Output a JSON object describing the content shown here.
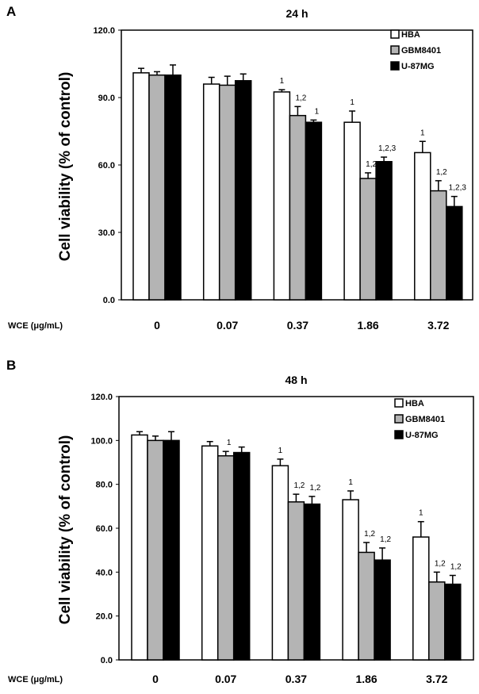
{
  "colors": {
    "HBA": "#ffffff",
    "GBM8401": "#b4b4b4",
    "U-87MG": "#000000"
  },
  "chart_data": [
    {
      "panel": "A",
      "type": "bar",
      "title": "24 h",
      "xlabel": "WCE (μg/mL)",
      "ylabel": "Cell viability (% of control)",
      "ylim": [
        0,
        120
      ],
      "yticks": [
        "0.0",
        "30.0",
        "60.0",
        "90.0",
        "120.0"
      ],
      "ytick_values": [
        0,
        30,
        60,
        90,
        120
      ],
      "categories": [
        "0",
        "0.07",
        "0.37",
        "1.86",
        "3.72"
      ],
      "legend_position": "top-right",
      "series": [
        {
          "name": "HBA",
          "values": [
            101,
            96,
            92.5,
            79,
            65.5
          ],
          "errors": [
            2,
            3,
            1,
            5,
            5
          ],
          "annotations": [
            "",
            "",
            "1",
            "1",
            "1"
          ]
        },
        {
          "name": "GBM8401",
          "values": [
            100,
            95.5,
            82,
            54,
            48.5
          ],
          "errors": [
            1.5,
            4,
            4,
            2.5,
            4.5
          ],
          "annotations": [
            "",
            "",
            "1,2",
            "1,2",
            "1,2"
          ]
        },
        {
          "name": "U-87MG",
          "values": [
            100,
            97.5,
            79,
            61.5,
            41.5
          ],
          "errors": [
            4.5,
            3,
            1,
            2,
            4.5
          ],
          "annotations": [
            "",
            "",
            "1",
            "1,2,3",
            "1,2,3"
          ]
        }
      ]
    },
    {
      "panel": "B",
      "type": "bar",
      "title": "48 h",
      "xlabel": "WCE (μg/mL)",
      "ylabel": "Cell viability (% of control)",
      "ylim": [
        0,
        120
      ],
      "yticks": [
        "0.0",
        "20.0",
        "40.0",
        "60.0",
        "80.0",
        "100.0",
        "120.0"
      ],
      "ytick_values": [
        0,
        20,
        40,
        60,
        80,
        100,
        120
      ],
      "categories": [
        "0",
        "0.07",
        "0.37",
        "1.86",
        "3.72"
      ],
      "legend_position": "top-right",
      "series": [
        {
          "name": "HBA",
          "values": [
            102.5,
            97.5,
            88.5,
            73,
            56
          ],
          "errors": [
            1.5,
            2,
            3,
            4,
            7
          ],
          "annotations": [
            "",
            "",
            "1",
            "1",
            "1"
          ]
        },
        {
          "name": "GBM8401",
          "values": [
            100,
            93,
            72,
            49,
            35.5
          ],
          "errors": [
            2,
            2,
            3.5,
            4.5,
            4.5
          ],
          "annotations": [
            "",
            "1",
            "1,2",
            "1,2",
            "1,2"
          ]
        },
        {
          "name": "U-87MG",
          "values": [
            100,
            94.5,
            71,
            45.5,
            34.5
          ],
          "errors": [
            4,
            2.5,
            3.5,
            5.5,
            4
          ],
          "annotations": [
            "",
            "",
            "1,2",
            "1,2",
            "1,2"
          ]
        }
      ]
    }
  ]
}
